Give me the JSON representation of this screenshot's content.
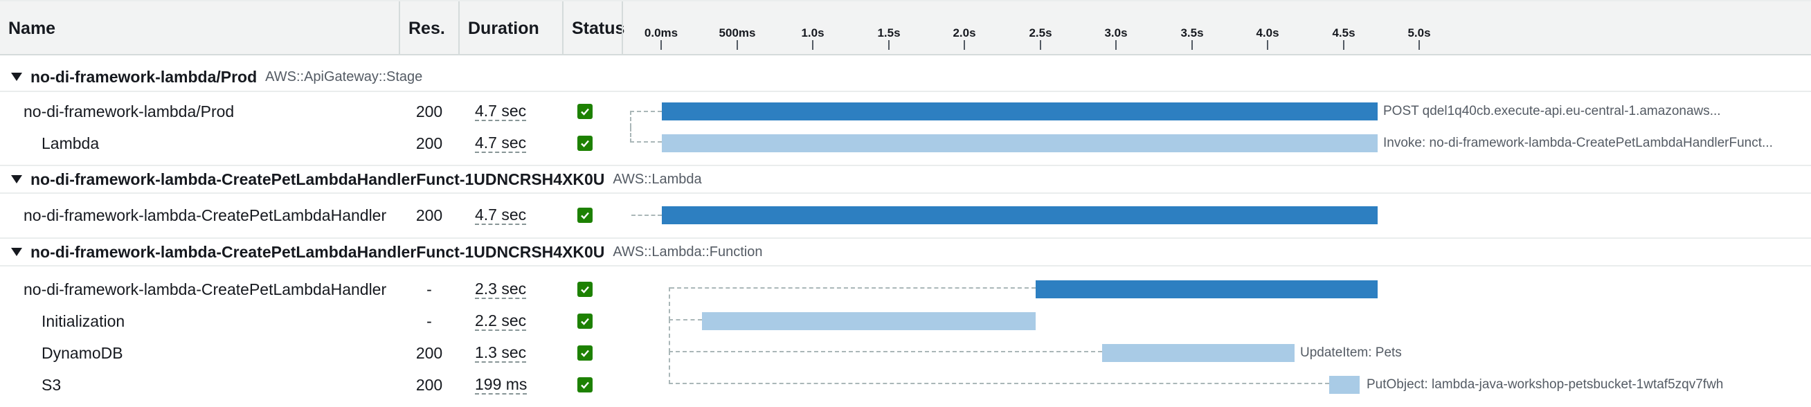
{
  "header": {
    "name": "Name",
    "res": "Res.",
    "duration": "Duration",
    "status": "Status",
    "ticks": [
      "0.0ms",
      "500ms",
      "1.0s",
      "1.5s",
      "2.0s",
      "2.5s",
      "3.0s",
      "3.5s",
      "4.0s",
      "4.5s",
      "5.0s"
    ]
  },
  "groups": [
    {
      "name": "no-di-framework-lambda/Prod",
      "type": "AWS::ApiGateway::Stage",
      "rows": [
        {
          "name": "no-di-framework-lambda/Prod",
          "res": "200",
          "duration": "4.7 sec",
          "bar_label": "POST qdel1q40cb.execute-api.eu-central-1.amazonaws..."
        },
        {
          "name": "Lambda",
          "res": "200",
          "duration": "4.7 sec",
          "bar_label": "Invoke: no-di-framework-lambda-CreatePetLambdaHandlerFunct..."
        }
      ]
    },
    {
      "name": "no-di-framework-lambda-CreatePetLambdaHandlerFunct-1UDNCRSH4XK0U",
      "type": "AWS::Lambda",
      "rows": [
        {
          "name": "no-di-framework-lambda-CreatePetLambdaHandler",
          "res": "200",
          "duration": "4.7 sec",
          "bar_label": ""
        }
      ]
    },
    {
      "name": "no-di-framework-lambda-CreatePetLambdaHandlerFunct-1UDNCRSH4XK0U",
      "type": "AWS::Lambda::Function",
      "rows": [
        {
          "name": "no-di-framework-lambda-CreatePetLambdaHandler",
          "res": "-",
          "duration": "2.3 sec",
          "bar_label": ""
        },
        {
          "name": "Initialization",
          "res": "-",
          "duration": "2.2 sec",
          "bar_label": ""
        },
        {
          "name": "DynamoDB",
          "res": "200",
          "duration": "1.3 sec",
          "bar_label": "UpdateItem: Pets"
        },
        {
          "name": "S3",
          "res": "200",
          "duration": "199 ms",
          "bar_label": "PutObject: lambda-java-workshop-petsbucket-1wtaf5zqv7fwh"
        }
      ]
    }
  ],
  "colors": {
    "primary_bar": "#2d7fc1",
    "secondary_bar": "#a9cbe6",
    "status_ok": "#1d8102"
  },
  "icons": {
    "status": "check-icon",
    "group_toggle": "caret-down-icon"
  }
}
